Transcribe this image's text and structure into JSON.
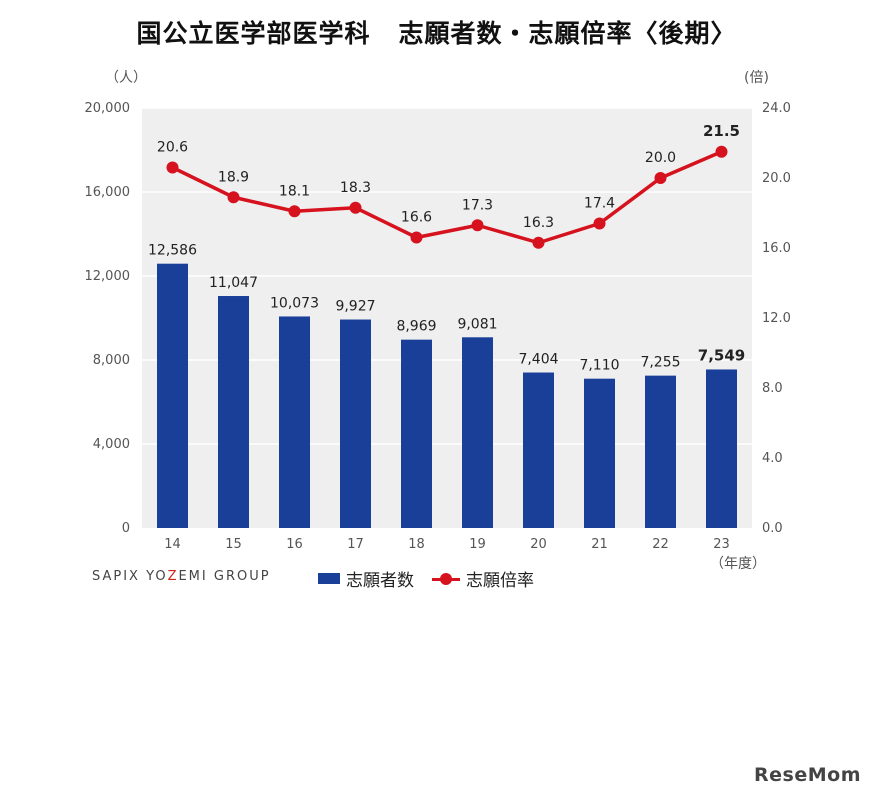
{
  "title_part1": "国公立医学部医学科",
  "title_part2": "志願者数・志願倍率〈後期〉",
  "left_axis_unit": "（人）",
  "right_axis_unit": "(倍)",
  "x_axis_unit": "（年度）",
  "brand": {
    "pre": "SAPIX YO",
    "z": "Z",
    "post": "EMI GROUP"
  },
  "logo": "ReseMom",
  "colors": {
    "bar": "#193f99",
    "line": "#d5121e",
    "plot_bg": "#efefef",
    "grid": "#ffffff"
  },
  "chart_data": {
    "type": "bar",
    "categories": [
      "14",
      "15",
      "16",
      "17",
      "18",
      "19",
      "20",
      "21",
      "22",
      "23"
    ],
    "series": [
      {
        "name": "志願者数",
        "type": "bar",
        "axis": "left",
        "values": [
          12586,
          11047,
          10073,
          9927,
          8969,
          9081,
          7404,
          7110,
          7255,
          7549
        ],
        "labels": [
          "12,586",
          "11,047",
          "10,073",
          "9,927",
          "8,969",
          "9,081",
          "7,404",
          "7,110",
          "7,255",
          "7,549"
        ]
      },
      {
        "name": "志願倍率",
        "type": "line",
        "axis": "right",
        "values": [
          20.6,
          18.9,
          18.1,
          18.3,
          16.6,
          17.3,
          16.3,
          17.4,
          20.0,
          21.5
        ],
        "labels": [
          "20.6",
          "18.9",
          "18.1",
          "18.3",
          "16.6",
          "17.3",
          "16.3",
          "17.4",
          "20.0",
          "21.5"
        ]
      }
    ],
    "left_ticks": [
      "0",
      "4,000",
      "8,000",
      "12,000",
      "16,000",
      "20,000"
    ],
    "right_ticks": [
      "0.0",
      "4.0",
      "8.0",
      "12.0",
      "16.0",
      "20.0",
      "24.0"
    ],
    "ylim_left": [
      0,
      20000
    ],
    "ylim_right": [
      0,
      24
    ],
    "grid": true,
    "legend_position": "bottom-center",
    "highlight_last": true
  }
}
